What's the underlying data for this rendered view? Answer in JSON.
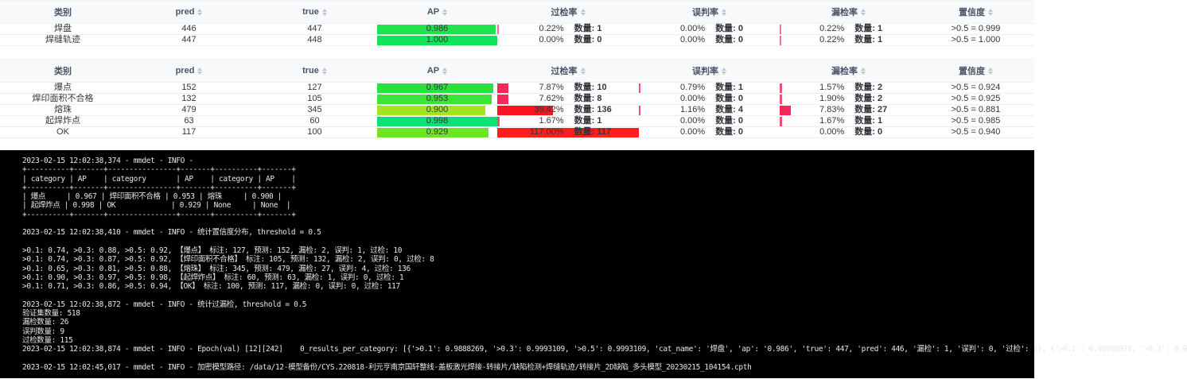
{
  "colors": {
    "header_bg": "#f8f9fb",
    "row_border": "#ebeef5",
    "header_text": "#4a5468",
    "cell_text": "#33363c",
    "sort_caret": "#c0c4cc",
    "terminal_bg": "#000000",
    "terminal_text": "#e8e8e8"
  },
  "count_label": "数量",
  "columns": [
    {
      "key": "category",
      "label": "类别",
      "sortable": false
    },
    {
      "key": "pred",
      "label": "pred",
      "sortable": true
    },
    {
      "key": "true",
      "label": "true",
      "sortable": true
    },
    {
      "key": "ap",
      "label": "AP",
      "sortable": true
    },
    {
      "key": "over",
      "label": "过检率",
      "sortable": true
    },
    {
      "key": "mis",
      "label": "误判率",
      "sortable": true
    },
    {
      "key": "miss",
      "label": "漏检率",
      "sortable": true
    },
    {
      "key": "conf",
      "label": "置信度",
      "sortable": true
    }
  ],
  "tables": [
    {
      "name": "weld-summary-table",
      "rows": [
        {
          "category": "焊盘",
          "pred": "446",
          "true": "447",
          "ap": {
            "value": "0.986",
            "pct": 98.6,
            "color": "#1fe24c"
          },
          "over": {
            "rate": "0.22%",
            "count": "1",
            "pct": 0.22,
            "color": "#f8708f"
          },
          "mis": {
            "rate": "0.00%",
            "count": "0",
            "pct": 0,
            "color": "#f8708f"
          },
          "miss": {
            "rate": "0.22%",
            "count": "1",
            "pct": 0.22,
            "color": "#f8708f"
          },
          "conf": ">0.5 = 0.999"
        },
        {
          "category": "焊缝轨迹",
          "pred": "447",
          "true": "448",
          "ap": {
            "value": "1.000",
            "pct": 100,
            "color": "#13e356"
          },
          "over": {
            "rate": "0.00%",
            "count": "0",
            "pct": 0,
            "color": "#f8708f"
          },
          "mis": {
            "rate": "0.00%",
            "count": "0",
            "pct": 0,
            "color": "#f8708f"
          },
          "miss": {
            "rate": "0.22%",
            "count": "1",
            "pct": 0.22,
            "color": "#f8708f"
          },
          "conf": ">0.5 = 1.000"
        }
      ]
    },
    {
      "name": "defect-metrics-table",
      "rows": [
        {
          "category": "爆点",
          "pred": "152",
          "true": "127",
          "ap": {
            "value": "0.967",
            "pct": 96.7,
            "color": "#27e23f"
          },
          "over": {
            "rate": "7.87%",
            "count": "10",
            "pct": 7.87,
            "color": "#f6285a"
          },
          "mis": {
            "rate": "0.79%",
            "count": "1",
            "pct": 0.79,
            "color": "#f64d6f"
          },
          "miss": {
            "rate": "1.57%",
            "count": "2",
            "pct": 1.57,
            "color": "#f64d6f"
          },
          "conf": ">0.5 = 0.924"
        },
        {
          "category": "焊印面积不合格",
          "pred": "132",
          "true": "105",
          "ap": {
            "value": "0.953",
            "pct": 95.3,
            "color": "#3be438"
          },
          "over": {
            "rate": "7.62%",
            "count": "8",
            "pct": 7.62,
            "color": "#f6285a"
          },
          "mis": {
            "rate": "0.00%",
            "count": "0",
            "pct": 0,
            "color": "#f64d6f"
          },
          "miss": {
            "rate": "1.90%",
            "count": "2",
            "pct": 1.9,
            "color": "#f64d6f"
          },
          "conf": ">0.5 = 0.925"
        },
        {
          "category": "熔珠",
          "pred": "479",
          "true": "345",
          "ap": {
            "value": "0.900",
            "pct": 90,
            "color": "#a2e41d"
          },
          "over": {
            "rate": "39.42%",
            "count": "136",
            "pct": 39.42,
            "color": "#fa1322"
          },
          "mis": {
            "rate": "1.16%",
            "count": "4",
            "pct": 1.16,
            "color": "#f64d6f"
          },
          "miss": {
            "rate": "7.83%",
            "count": "27",
            "pct": 7.83,
            "color": "#f6285a"
          },
          "conf": ">0.5 = 0.881"
        },
        {
          "category": "起焊炸点",
          "pred": "63",
          "true": "60",
          "ap": {
            "value": "0.998",
            "pct": 99.8,
            "color": "#0fdf74"
          },
          "over": {
            "rate": "1.67%",
            "count": "1",
            "pct": 1.67,
            "color": "#f64d6f"
          },
          "mis": {
            "rate": "0.00%",
            "count": "0",
            "pct": 0,
            "color": "#f64d6f"
          },
          "miss": {
            "rate": "1.67%",
            "count": "1",
            "pct": 1.67,
            "color": "#f64d6f"
          },
          "conf": ">0.5 = 0.985"
        },
        {
          "category": "OK",
          "pred": "117",
          "true": "100",
          "ap": {
            "value": "0.929",
            "pct": 92.9,
            "color": "#70e324"
          },
          "over": {
            "rate": "117.00%",
            "count": "117",
            "pct": 117,
            "color": "#fd1f1f"
          },
          "mis": {
            "rate": "0.00%",
            "count": "0",
            "pct": 0,
            "color": "#f64d6f"
          },
          "miss": {
            "rate": "0.00%",
            "count": "0",
            "pct": 0,
            "color": "#f64d6f"
          },
          "conf": ">0.5 = 0.940"
        }
      ]
    }
  ],
  "terminal": {
    "lines": [
      "2023-02-15 12:02:38,374 - mmdet - INFO - ",
      "+----------+-------+----------------+-------+----------+-------+",
      "| category | AP    | category       | AP    | category | AP    |",
      "+----------+-------+----------------+-------+----------+-------+",
      "| 爆点     | 0.967 | 焊印面积不合格 | 0.953 | 熔珠     | 0.900 |",
      "| 起焊炸点 | 0.998 | OK             | 0.929 | None     | None  |",
      "+----------+-------+----------------+-------+----------+-------+",
      "",
      "2023-02-15 12:02:38,410 - mmdet - INFO - 统计置信度分布, threshold = 0.5",
      "",
      ">0.1: 0.74, >0.3: 0.88, >0.5: 0.92, 【爆点】 标注: 127, 预测: 152, 漏检: 2, 误判: 1, 过检: 10",
      ">0.1: 0.74, >0.3: 0.87, >0.5: 0.92, 【焊印面积不合格】 标注: 105, 预测: 132, 漏检: 2, 误判: 0, 过检: 8",
      ">0.1: 0.65, >0.3: 0.81, >0.5: 0.88, 【熔珠】 标注: 345, 预测: 479, 漏检: 27, 误判: 4, 过检: 136",
      ">0.1: 0.90, >0.3: 0.97, >0.5: 0.98, 【起焊炸点】 标注: 60, 预测: 63, 漏检: 1, 误判: 0, 过检: 1",
      ">0.1: 0.71, >0.3: 0.86, >0.5: 0.94, 【OK】 标注: 100, 预测: 117, 漏检: 0, 误判: 0, 过检: 117",
      "",
      "2023-02-15 12:02:38,872 - mmdet - INFO - 统计过漏检, threshold = 0.5",
      "验证集数量: 518",
      "漏检数量: 26",
      "误判数量: 9",
      "过检数量: 115",
      "2023-02-15 12:02:38,874 - mmdet - INFO - Epoch(val) [12][242]    0_results_per_category: [{'>0.1': 0.9888269, '>0.3': 0.9993109, '>0.5': 0.9993109, 'cat_name': '焊盘', 'ap': '0.986', 'true': 447, 'pred': 446, '漏检': 1, '误判': 0, '过检': 1}, {'>0.1': 0.99998033, '>0.3': 0.9",
      "",
      "2023-02-15 12:02:45,017 - mmdet - INFO - 加密模型路径: /data/12-模型备份/CYS.220818-利元亨南京国轩整线-盖板激光焊接-转接片/缺陷检测+焊缝轨迹/转接片_2D缺陷_多头模型_20230215_104154.cpth"
    ]
  }
}
